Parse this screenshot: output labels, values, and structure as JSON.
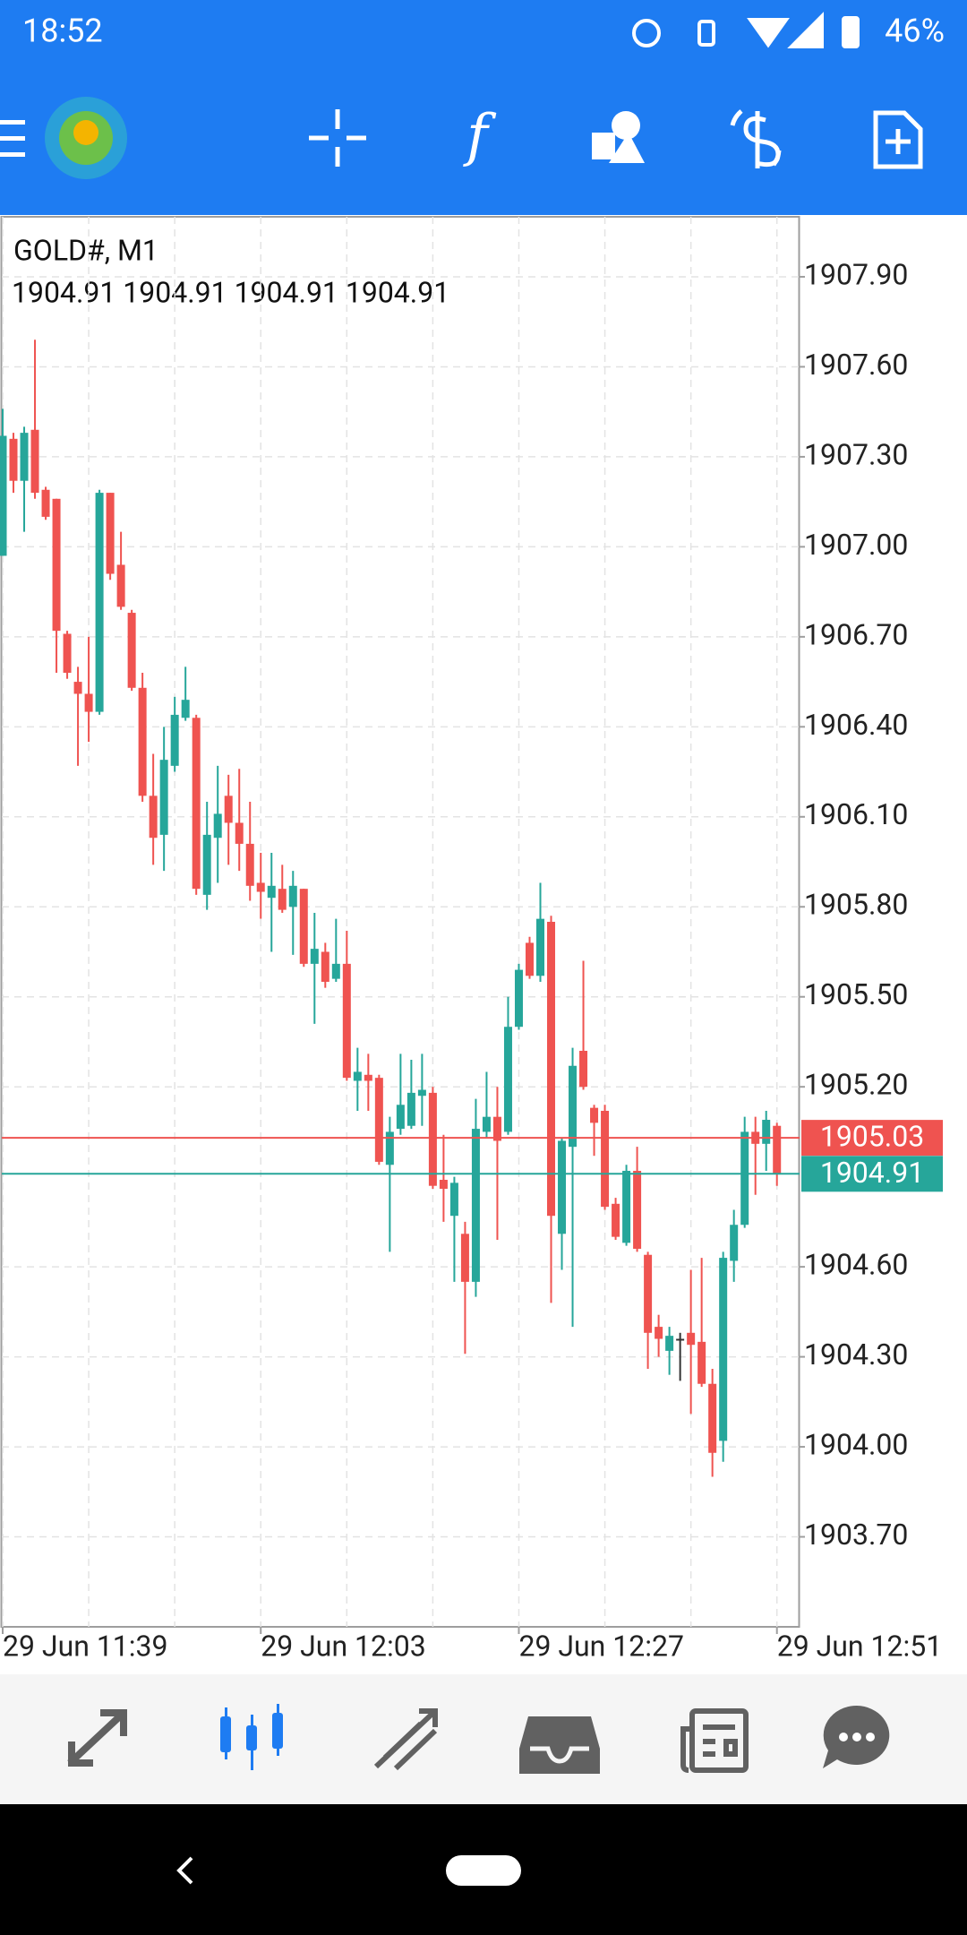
{
  "status_bar": {
    "time": "18:52",
    "battery": "46%"
  },
  "chart_data": {
    "type": "candlestick",
    "title": "GOLD#, M1",
    "subtitle": "1904.91 1904.91 1904.91 1904.91",
    "categories": [
      "29 Jun 11:39",
      null,
      null,
      null,
      null,
      null,
      null,
      null,
      null,
      null,
      null,
      null,
      null,
      null,
      null,
      null,
      null,
      null,
      null,
      null,
      null,
      null,
      null,
      null,
      "29 Jun 12:03",
      null,
      null,
      null,
      null,
      null,
      null,
      null,
      null,
      null,
      null,
      null,
      null,
      null,
      null,
      null,
      null,
      null,
      null,
      null,
      null,
      null,
      null,
      null,
      "29 Jun 12:27",
      null,
      null,
      null,
      null,
      null,
      null,
      null,
      null,
      null,
      null,
      null,
      null,
      null,
      null,
      null,
      null,
      null,
      null,
      null,
      null,
      null,
      null,
      null,
      "29 Jun 12:51"
    ],
    "open": [
      1906.97,
      1907.36,
      1907.22,
      1907.39,
      1907.19,
      1907.16,
      1906.71,
      1906.55,
      1906.51,
      1906.45,
      1907.18,
      1906.94,
      1906.78,
      1906.53,
      1906.17,
      1906.04,
      1906.27,
      1906.43,
      1906.43,
      1905.84,
      1906.03,
      1906.17,
      1906.08,
      1906.01,
      1905.88,
      1905.83,
      1905.86,
      1905.8,
      1905.86,
      1905.61,
      1905.65,
      1905.56,
      1905.61,
      1905.22,
      1905.24,
      1905.23,
      1904.94,
      1905.06,
      1905.07,
      1905.17,
      1905.18,
      1904.89,
      1904.77,
      1904.71,
      1904.55,
      1905.05,
      1905.1,
      1905.05,
      1905.4,
      1905.68,
      1905.57,
      1905.75,
      1904.71,
      1905.0,
      1905.32,
      1905.13,
      1905.12,
      1904.81,
      1904.68,
      1904.92,
      1904.64,
      1904.4,
      1904.32,
      1904.36,
      1904.38,
      1904.35,
      1904.21,
      1904.02,
      1904.62,
      1904.74,
      1905.05,
      1905.01,
      1905.07
    ],
    "high": [
      1907.46,
      1907.38,
      1907.4,
      1907.69,
      1907.2,
      1907.16,
      1906.72,
      1906.6,
      1906.7,
      1907.19,
      1907.18,
      1907.05,
      1906.79,
      1906.58,
      1906.31,
      1906.4,
      1906.5,
      1906.6,
      1906.44,
      1906.15,
      1906.27,
      1906.24,
      1906.26,
      1906.15,
      1905.98,
      1905.98,
      1905.94,
      1905.92,
      1905.86,
      1905.78,
      1905.68,
      1905.76,
      1905.72,
      1905.33,
      1905.31,
      1905.24,
      1905.1,
      1905.31,
      1905.29,
      1905.31,
      1905.2,
      1905.04,
      1904.9,
      1904.75,
      1905.16,
      1905.25,
      1905.2,
      1905.5,
      1905.61,
      1905.7,
      1905.88,
      1905.77,
      1905.03,
      1905.33,
      1905.62,
      1905.14,
      1905.14,
      1904.83,
      1904.94,
      1905.0,
      1904.65,
      1904.44,
      1904.4,
      1904.38,
      1904.59,
      1904.63,
      1904.26,
      1904.65,
      1904.79,
      1905.1,
      1905.1,
      1905.12,
      1905.08
    ],
    "low": [
      1906.97,
      1907.18,
      1907.05,
      1907.16,
      1907.09,
      1906.58,
      1906.56,
      1906.27,
      1906.35,
      1906.44,
      1906.89,
      1906.79,
      1906.52,
      1906.15,
      1905.94,
      1905.92,
      1906.25,
      1906.42,
      1905.84,
      1905.79,
      1905.88,
      1905.94,
      1905.92,
      1905.82,
      1905.76,
      1905.65,
      1905.78,
      1905.64,
      1905.6,
      1905.41,
      1905.53,
      1905.55,
      1905.22,
      1905.12,
      1905.12,
      1904.94,
      1904.65,
      1905.04,
      1905.06,
      1905.07,
      1904.86,
      1904.75,
      1904.55,
      1904.31,
      1904.5,
      1905.03,
      1904.69,
      1905.04,
      1905.39,
      1905.56,
      1905.55,
      1904.48,
      1904.59,
      1904.4,
      1905.19,
      1904.97,
      1904.79,
      1904.69,
      1904.67,
      1904.65,
      1904.26,
      1904.3,
      1904.24,
      1904.22,
      1904.11,
      1904.2,
      1903.9,
      1903.95,
      1904.55,
      1904.73,
      1904.84,
      1904.92,
      1904.87
    ],
    "close": [
      1907.37,
      1907.22,
      1907.38,
      1907.18,
      1907.1,
      1906.72,
      1906.58,
      1906.51,
      1906.45,
      1907.18,
      1906.91,
      1906.8,
      1906.53,
      1906.17,
      1906.03,
      1906.29,
      1906.44,
      1906.49,
      1905.86,
      1906.04,
      1906.11,
      1906.08,
      1906.01,
      1905.87,
      1905.85,
      1905.87,
      1905.79,
      1905.87,
      1905.61,
      1905.66,
      1905.55,
      1905.61,
      1905.23,
      1905.25,
      1905.22,
      1904.95,
      1905.05,
      1905.14,
      1905.18,
      1905.19,
      1904.87,
      1904.86,
      1904.88,
      1904.55,
      1905.06,
      1905.1,
      1905.02,
      1905.4,
      1905.59,
      1905.57,
      1905.76,
      1904.77,
      1905.02,
      1905.27,
      1905.2,
      1905.08,
      1904.8,
      1904.7,
      1904.92,
      1904.66,
      1904.38,
      1904.36,
      1904.37,
      1904.36,
      1904.34,
      1904.21,
      1903.98,
      1904.63,
      1904.74,
      1905.05,
      1905.01,
      1905.09,
      1904.91
    ],
    "up_color": "#26a69a",
    "down_color": "#ef5350",
    "flat_color": "#333333",
    "ylim": [
      1903.4,
      1908.1
    ],
    "yticks": [
      {
        "value": 1903.7,
        "label": "1903.70"
      },
      {
        "value": 1904.0,
        "label": "1904.00"
      },
      {
        "value": 1904.3,
        "label": "1904.30"
      },
      {
        "value": 1904.6,
        "label": "1904.60"
      },
      {
        "value": 1905.2,
        "label": "1905.20"
      },
      {
        "value": 1905.5,
        "label": "1905.50"
      },
      {
        "value": 1905.8,
        "label": "1905.80"
      },
      {
        "value": 1906.1,
        "label": "1906.10"
      },
      {
        "value": 1906.4,
        "label": "1906.40"
      },
      {
        "value": 1906.7,
        "label": "1906.70"
      },
      {
        "value": 1907.0,
        "label": "1907.00"
      },
      {
        "value": 1907.3,
        "label": "1907.30"
      },
      {
        "value": 1907.6,
        "label": "1907.60"
      },
      {
        "value": 1907.9,
        "label": "1907.90"
      }
    ],
    "grid": true,
    "price_lines": [
      {
        "value": 1905.03,
        "color": "#ef5350"
      },
      {
        "value": 1904.91,
        "color": "#26a69a"
      }
    ]
  }
}
